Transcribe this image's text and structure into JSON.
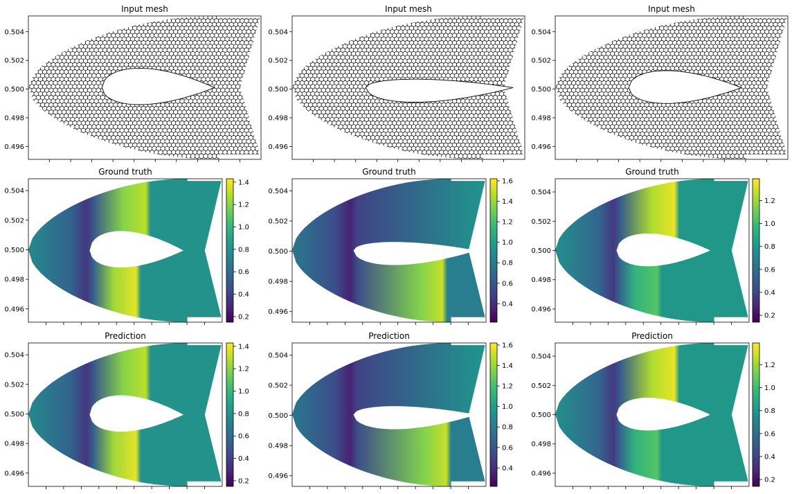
{
  "chart_data": [
    {
      "type": "scatter",
      "panel": "mesh",
      "column": 0,
      "title": "Input mesh",
      "ylim": [
        0.4951,
        0.5051
      ],
      "yticks": [
        "0.504",
        "0.502",
        "0.500",
        "0.498",
        "0.496"
      ],
      "airfoil": {
        "le": 0.316,
        "te": 0.8,
        "ycenter": 0.5,
        "upper_t": 0.16,
        "lower_t": 0.14
      },
      "series": [
        {
          "values": "structured C-mesh node markers (open circles)"
        }
      ]
    },
    {
      "type": "scatter",
      "panel": "mesh",
      "column": 1,
      "title": "Input mesh",
      "ylim": [
        0.4951,
        0.5051
      ],
      "yticks": [
        "0.504",
        "0.502",
        "0.500",
        "0.498",
        "0.496"
      ],
      "airfoil": {
        "le": 0.316,
        "te": 0.95,
        "ycenter": 0.5,
        "upper_t": 0.07,
        "lower_t": 0.12
      },
      "series": [
        {
          "values": "structured C-mesh node markers (open circles)"
        }
      ]
    },
    {
      "type": "scatter",
      "panel": "mesh",
      "column": 2,
      "title": "Input mesh",
      "ylim": [
        0.4951,
        0.5051
      ],
      "yticks": [
        "0.504",
        "0.502",
        "0.500",
        "0.498",
        "0.496"
      ],
      "airfoil": {
        "le": 0.316,
        "te": 0.8,
        "ycenter": 0.5,
        "upper_t": 0.14,
        "lower_t": 0.13
      },
      "series": [
        {
          "values": "structured C-mesh node markers (open circles)"
        }
      ]
    },
    {
      "type": "heatmap",
      "panel": "field",
      "column": 0,
      "title": "Ground truth",
      "ylim": [
        0.4951,
        0.5048
      ],
      "yticks": [
        "0.504",
        "0.502",
        "0.500",
        "0.498",
        "0.496"
      ],
      "colorbar": {
        "min": 0.15,
        "max": 1.43,
        "ticks": [
          "0.2",
          "0.4",
          "0.6",
          "0.8",
          "1.0",
          "1.2",
          "1.4"
        ]
      },
      "field": {
        "freestream": 0.8,
        "peak_upper": 1.3,
        "peak_lower": 1.38,
        "shock_upper": 0.61,
        "shock_lower": 0.56
      }
    },
    {
      "type": "heatmap",
      "panel": "field",
      "column": 1,
      "title": "Ground truth",
      "ylim": [
        0.4953,
        0.5048
      ],
      "yticks": [
        "0.504",
        "0.502",
        "0.500",
        "0.498",
        "0.496"
      ],
      "colorbar": {
        "min": 0.22,
        "max": 1.62,
        "ticks": [
          "0.4",
          "0.6",
          "0.8",
          "1.0",
          "1.2",
          "1.4",
          "1.6"
        ]
      },
      "field": {
        "freestream": 0.82,
        "peak_upper": 0.95,
        "peak_lower": 1.5,
        "shock_upper": 1.0,
        "shock_lower": 0.78
      }
    },
    {
      "type": "heatmap",
      "panel": "field",
      "column": 2,
      "title": "Ground truth",
      "ylim": [
        0.4951,
        0.5049
      ],
      "yticks": [
        "0.504",
        "0.502",
        "0.500",
        "0.498",
        "0.496"
      ],
      "colorbar": {
        "min": 0.14,
        "max": 1.39,
        "ticks": [
          "0.2",
          "0.4",
          "0.6",
          "0.8",
          "1.0",
          "1.2"
        ]
      },
      "field": {
        "freestream": 0.8,
        "peak_upper": 1.35,
        "peak_lower": 1.05,
        "shock_upper": 0.62,
        "shock_lower": 0.53
      }
    },
    {
      "type": "heatmap",
      "panel": "field",
      "column": 0,
      "title": "Prediction",
      "ylim": [
        0.4951,
        0.5048
      ],
      "yticks": [
        "0.504",
        "0.502",
        "0.500",
        "0.498",
        "0.496"
      ],
      "colorbar": {
        "min": 0.15,
        "max": 1.43,
        "ticks": [
          "0.2",
          "0.4",
          "0.6",
          "0.8",
          "1.0",
          "1.2",
          "1.4"
        ]
      },
      "field": {
        "freestream": 0.8,
        "peak_upper": 1.3,
        "peak_lower": 1.38,
        "shock_upper": 0.61,
        "shock_lower": 0.56
      }
    },
    {
      "type": "heatmap",
      "panel": "field",
      "column": 1,
      "title": "Prediction",
      "ylim": [
        0.4953,
        0.5048
      ],
      "yticks": [
        "0.504",
        "0.502",
        "0.500",
        "0.498",
        "0.496"
      ],
      "colorbar": {
        "min": 0.22,
        "max": 1.62,
        "ticks": [
          "0.4",
          "0.6",
          "0.8",
          "1.0",
          "1.2",
          "1.4",
          "1.6"
        ]
      },
      "field": {
        "freestream": 0.82,
        "peak_upper": 0.95,
        "peak_lower": 1.5,
        "shock_upper": 1.0,
        "shock_lower": 0.8
      }
    },
    {
      "type": "heatmap",
      "panel": "field",
      "column": 2,
      "title": "Prediction",
      "ylim": [
        0.4951,
        0.5049
      ],
      "yticks": [
        "0.504",
        "0.502",
        "0.500",
        "0.498",
        "0.496"
      ],
      "colorbar": {
        "min": 0.14,
        "max": 1.39,
        "ticks": [
          "0.2",
          "0.4",
          "0.6",
          "0.8",
          "1.0",
          "1.2"
        ]
      },
      "field": {
        "freestream": 0.8,
        "peak_upper": 1.35,
        "peak_lower": 1.05,
        "shock_upper": 0.62,
        "shock_lower": 0.53
      }
    }
  ],
  "colors": {
    "viridis": [
      "#440154",
      "#482878",
      "#3e4a89",
      "#31688e",
      "#26828e",
      "#1f9e89",
      "#35b779",
      "#6ece58",
      "#b5de2b",
      "#fde725"
    ],
    "mesh_marker_edge": "#000000",
    "mesh_marker_face": "#ffffff",
    "axes": "#000000",
    "background": "#ffffff"
  }
}
